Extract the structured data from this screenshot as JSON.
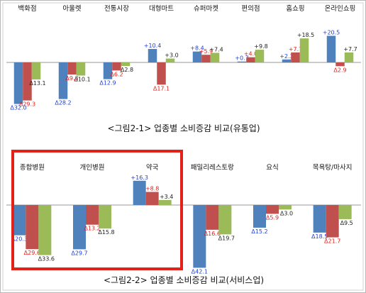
{
  "colors": {
    "decrease": "#4f81bd",
    "mid": "#c0504d",
    "increase": "#9bbb59",
    "blue_label": "#1f3fd6",
    "red_label": "#e0201c",
    "dark_label": "#222222",
    "highlight": "#e32119"
  },
  "chart_data": [
    {
      "type": "bar",
      "title": "<그림2-1> 업종별 소비증감 비교(유통업)",
      "categories": [
        "백화점",
        "아울렛",
        "전통시장",
        "대형마트",
        "슈퍼마켓",
        "편의점",
        "홈쇼핑",
        "온라인쇼핑"
      ],
      "series": [
        {
          "values": [
            -32.0,
            -28.2,
            -12.9,
            10.4,
            8.4,
            0.7,
            2.3,
            20.5
          ],
          "labels": [
            "Δ32.0",
            "Δ28.2",
            "Δ12.9",
            "+10.4",
            "+8.4",
            "+0.7",
            "+2.3",
            "+20.5"
          ]
        },
        {
          "values": [
            -29.3,
            -9.3,
            -6.2,
            -17.1,
            5.9,
            4.0,
            7.7,
            -2.9
          ],
          "labels": [
            "Δ29.3",
            "Δ9.3",
            "Δ6.2",
            "Δ17.1",
            "+5.9",
            "+4.0",
            "+7.7",
            "Δ2.9"
          ]
        },
        {
          "values": [
            -13.1,
            -10.1,
            -2.8,
            3.0,
            7.4,
            9.8,
            18.5,
            7.7
          ],
          "labels": [
            "Δ13.1",
            "Δ10.1",
            "Δ2.8",
            "+3.0",
            "+7.4",
            "+9.8",
            "+18.5",
            "+7.7"
          ]
        }
      ],
      "grid": false,
      "legend": "none"
    },
    {
      "type": "bar",
      "title": "<그림2-2> 업종별 소비증감 비교(서비스업)",
      "categories": [
        "종합병원",
        "개인병원",
        "약국",
        "패밀리레스토랑",
        "요식",
        "목욕탕/마사지"
      ],
      "highlighted_categories": [
        "종합병원",
        "개인병원",
        "약국"
      ],
      "series": [
        {
          "values": [
            -20.3,
            -29.7,
            16.3,
            -42.1,
            -15.2,
            -18.5
          ],
          "labels": [
            "Δ20.3",
            "Δ29.7",
            "+16.3",
            "Δ42.1",
            "Δ15.2",
            "Δ18.5"
          ]
        },
        {
          "values": [
            -29.6,
            -13.2,
            8.8,
            -16.6,
            -5.9,
            -21.7
          ],
          "labels": [
            "Δ29.6",
            "Δ13.2",
            "+8.8",
            "Δ16.6",
            "Δ5.9",
            "Δ21.7"
          ]
        },
        {
          "values": [
            -33.6,
            -15.8,
            3.4,
            -19.7,
            -3.0,
            -9.5
          ],
          "labels": [
            "Δ33.6",
            "Δ15.8",
            "+3.4",
            "Δ19.7",
            "Δ3.0",
            "Δ9.5"
          ]
        }
      ],
      "grid": false,
      "legend": "none"
    }
  ]
}
